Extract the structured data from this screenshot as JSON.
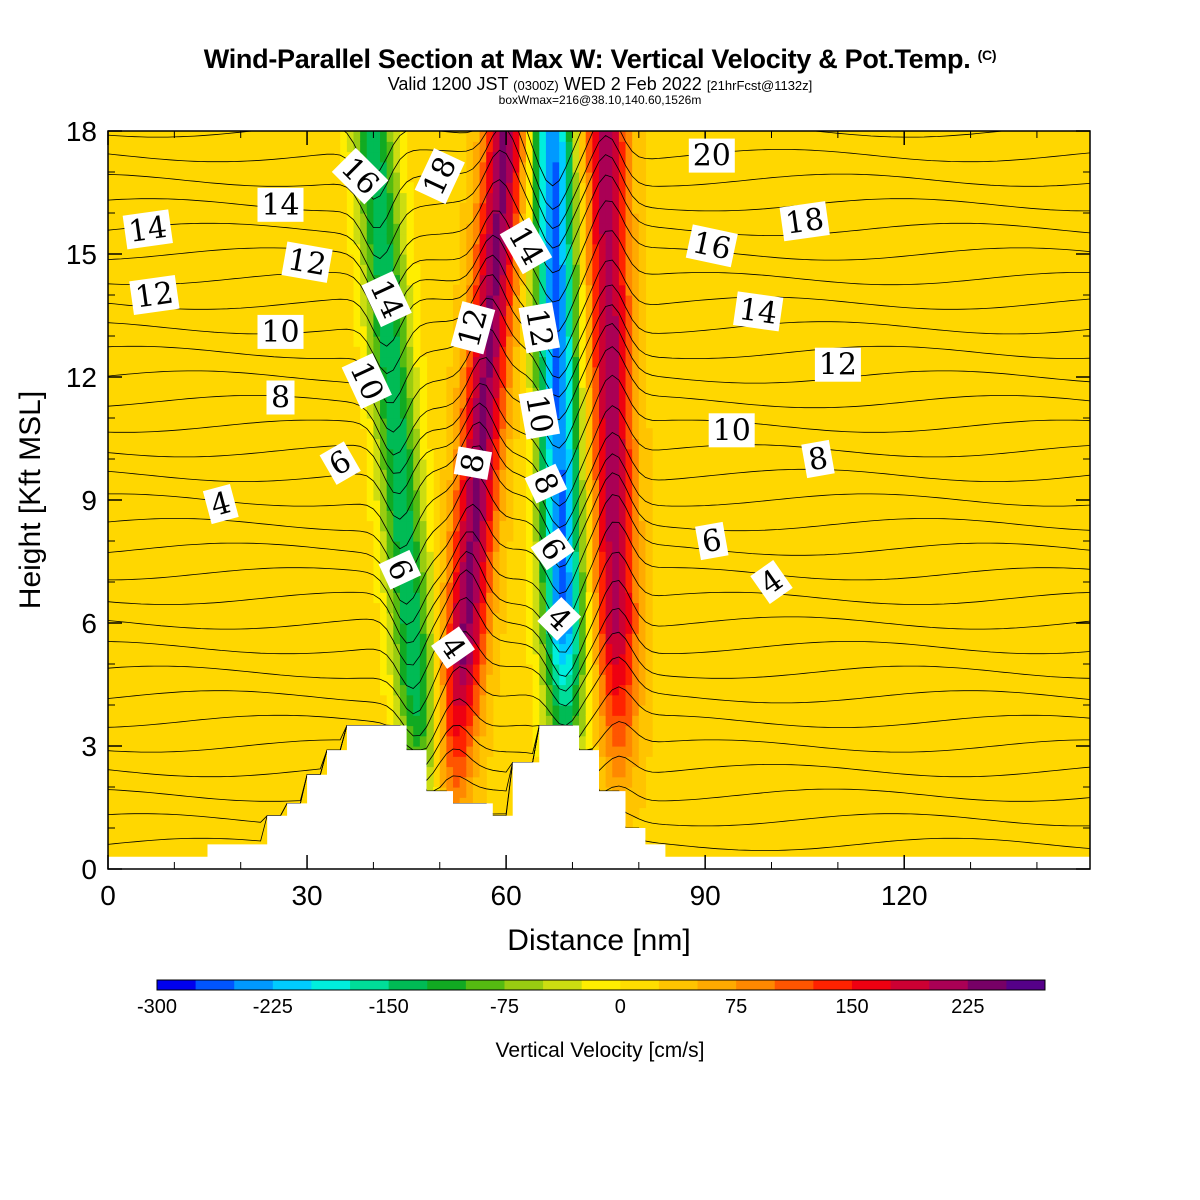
{
  "header": {
    "title": "Wind-Parallel Section at Max W: Vertical Velocity & Pot.Temp.",
    "title_mark": "(C)",
    "subtitle_a": "Valid 1200 JST",
    "subtitle_b": "(0300Z)",
    "subtitle_c": "WED 2 Feb 2022",
    "subtitle_d": "[21hrFcst@1132z]",
    "subtitle2": "boxWmax=216@38.10,140.60,1526m"
  },
  "chart_data": {
    "type": "heatmap",
    "xlabel": "Distance [nm]",
    "ylabel": "Height [Kft MSL]",
    "xlim": [
      0,
      148
    ],
    "ylim": [
      0,
      18
    ],
    "xticks": [
      0,
      30,
      60,
      90,
      120
    ],
    "yticks": [
      0,
      3,
      6,
      9,
      12,
      15,
      18
    ],
    "colorbar": {
      "title": "Vertical Velocity [cm/s]",
      "ticks": [
        -300,
        -225,
        -150,
        -75,
        0,
        75,
        150,
        225
      ],
      "levels": [
        -300,
        -275,
        -250,
        -225,
        -200,
        -175,
        -150,
        -125,
        -100,
        -75,
        -50,
        -25,
        0,
        25,
        50,
        75,
        100,
        125,
        150,
        175,
        200,
        225,
        250
      ],
      "colors": [
        "#0000ee",
        "#0055ff",
        "#0099ff",
        "#00ccff",
        "#00eedd",
        "#00dd99",
        "#00bb55",
        "#11aa22",
        "#55bb11",
        "#99cc11",
        "#ccdd11",
        "#ffee00",
        "#ffdd00",
        "#ffc400",
        "#ffaa00",
        "#ff8800",
        "#ff5500",
        "#ff2200",
        "#ee0011",
        "#cc0033",
        "#aa0055",
        "#770066",
        "#550088"
      ]
    },
    "terrain_top_kft": [
      [
        0,
        0.3
      ],
      [
        15,
        0.6
      ],
      [
        24,
        1.3
      ],
      [
        27,
        1.6
      ],
      [
        30,
        2.3
      ],
      [
        33,
        2.9
      ],
      [
        36,
        3.5
      ],
      [
        45,
        2.9
      ],
      [
        48,
        1.9
      ],
      [
        52,
        1.6
      ],
      [
        58,
        1.3
      ],
      [
        61,
        2.6
      ],
      [
        65,
        3.5
      ],
      [
        71,
        2.9
      ],
      [
        74,
        1.9
      ],
      [
        78,
        1.0
      ],
      [
        81,
        0.6
      ],
      [
        84,
        0.3
      ],
      [
        148,
        0.3
      ]
    ],
    "vertical_velocity_bands": [
      {
        "name": "downdraft-1",
        "w_cm_s": -160,
        "x_top_nm": 40,
        "x_bottom_nm": 48,
        "y_range_kft": [
          1,
          18
        ]
      },
      {
        "name": "updraft-1",
        "w_cm_s": 216,
        "x_top_nm": 60,
        "x_bottom_nm": 52,
        "y_range_kft": [
          2,
          18
        ]
      },
      {
        "name": "downdraft-2",
        "w_cm_s": -270,
        "x_top_nm": 67,
        "x_bottom_nm": 69,
        "y_range_kft": [
          3,
          18
        ]
      },
      {
        "name": "updraft-2",
        "w_cm_s": 200,
        "x_top_nm": 75,
        "x_bottom_nm": 77,
        "y_range_kft": [
          3,
          18
        ]
      }
    ],
    "theta_contour_labels": [
      {
        "text": "14",
        "x": 6,
        "y": 15.6,
        "rot": -8
      },
      {
        "text": "12",
        "x": 7,
        "y": 14.0,
        "rot": -8
      },
      {
        "text": "14",
        "x": 26,
        "y": 16.2,
        "rot": 0
      },
      {
        "text": "12",
        "x": 30,
        "y": 14.8,
        "rot": 10
      },
      {
        "text": "10",
        "x": 26,
        "y": 13.1,
        "rot": 0
      },
      {
        "text": "8",
        "x": 26,
        "y": 11.5,
        "rot": 0
      },
      {
        "text": "6",
        "x": 35,
        "y": 9.9,
        "rot": -30
      },
      {
        "text": "4",
        "x": 17,
        "y": 8.9,
        "rot": -15
      },
      {
        "text": "16",
        "x": 38,
        "y": 16.9,
        "rot": 45
      },
      {
        "text": "14",
        "x": 42,
        "y": 13.9,
        "rot": 65
      },
      {
        "text": "10",
        "x": 39,
        "y": 11.9,
        "rot": 65
      },
      {
        "text": "6",
        "x": 44,
        "y": 7.3,
        "rot": 65
      },
      {
        "text": "18",
        "x": 50,
        "y": 16.9,
        "rot": -65
      },
      {
        "text": "12",
        "x": 55,
        "y": 13.2,
        "rot": -75
      },
      {
        "text": "8",
        "x": 55,
        "y": 9.9,
        "rot": -80
      },
      {
        "text": "4",
        "x": 52,
        "y": 5.4,
        "rot": 55
      },
      {
        "text": "14",
        "x": 63,
        "y": 15.2,
        "rot": 60
      },
      {
        "text": "12",
        "x": 65,
        "y": 13.2,
        "rot": 80
      },
      {
        "text": "10",
        "x": 65,
        "y": 11.1,
        "rot": 80
      },
      {
        "text": "8",
        "x": 66,
        "y": 9.4,
        "rot": 65
      },
      {
        "text": "6",
        "x": 67,
        "y": 7.8,
        "rot": 55
      },
      {
        "text": "4",
        "x": 68,
        "y": 6.1,
        "rot": 45
      },
      {
        "text": "20",
        "x": 91,
        "y": 17.4,
        "rot": 0
      },
      {
        "text": "18",
        "x": 105,
        "y": 15.8,
        "rot": -8
      },
      {
        "text": "16",
        "x": 91,
        "y": 15.2,
        "rot": 12
      },
      {
        "text": "14",
        "x": 98,
        "y": 13.6,
        "rot": 8
      },
      {
        "text": "12",
        "x": 110,
        "y": 12.3,
        "rot": 0
      },
      {
        "text": "10",
        "x": 94,
        "y": 10.7,
        "rot": 0
      },
      {
        "text": "8",
        "x": 107,
        "y": 10.0,
        "rot": -10
      },
      {
        "text": "6",
        "x": 91,
        "y": 8.0,
        "rot": -10
      },
      {
        "text": "4",
        "x": 100,
        "y": 7.0,
        "rot": -35
      }
    ]
  }
}
